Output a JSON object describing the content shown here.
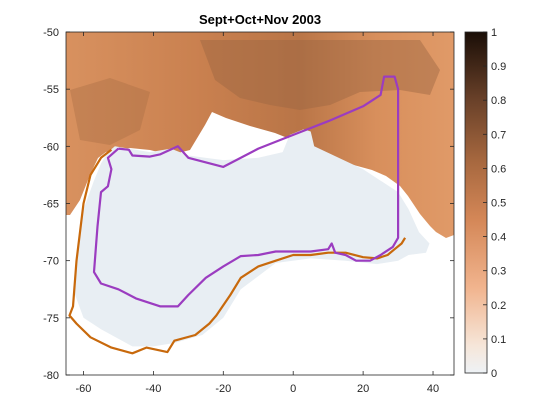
{
  "title": "Sept+Oct+Nov 2003",
  "map": {
    "lon_range": [
      -65,
      46
    ],
    "lat_range": [
      -80,
      -50
    ],
    "x_ticks": [
      "-60",
      "-40",
      "-20",
      "0",
      "20",
      "40"
    ],
    "x_tick_values": [
      -60,
      -40,
      -20,
      0,
      20,
      40
    ],
    "y_ticks": [
      "-50",
      "-55",
      "-60",
      "-65",
      "-70",
      "-75",
      "-80"
    ],
    "y_tick_values": [
      -50,
      -55,
      -60,
      -65,
      -70,
      -75,
      -80
    ],
    "colorbar_ticks": [
      "0",
      "0.1",
      "0.2",
      "0.3",
      "0.4",
      "0.5",
      "0.6",
      "0.7",
      "0.8",
      "0.9",
      "1"
    ],
    "colorbar_tick_values": [
      0,
      0.1,
      0.2,
      0.3,
      0.4,
      0.5,
      0.6,
      0.7,
      0.8,
      0.9,
      1
    ],
    "colorbar_range": [
      0,
      1
    ],
    "colors": {
      "ocean_field": "#d48757",
      "ocean_dark": "#8a5a3c",
      "sea_ice_low": "#e8eef3",
      "purple_boundary": "#9b3cc0",
      "orange_boundary": "#c8690c"
    },
    "purple_boundary_lonlat": [
      [
        -50,
        -60.2
      ],
      [
        -47,
        -60.3
      ],
      [
        -46,
        -60.8
      ],
      [
        -41,
        -60.9
      ],
      [
        -38,
        -60.7
      ],
      [
        -33,
        -60.0
      ],
      [
        -30,
        -61.0
      ],
      [
        -20,
        -61.8
      ],
      [
        -10,
        -60.2
      ],
      [
        0,
        -59.0
      ],
      [
        10,
        -57.8
      ],
      [
        20,
        -56.5
      ],
      [
        25,
        -55.5
      ],
      [
        26,
        -53.9
      ],
      [
        29,
        -53.9
      ],
      [
        30,
        -55.0
      ],
      [
        30,
        -68.0
      ],
      [
        28.5,
        -68.8
      ],
      [
        25,
        -69.5
      ],
      [
        22,
        -70.0
      ],
      [
        18,
        -70.0
      ],
      [
        15,
        -69.5
      ],
      [
        12,
        -69.3
      ],
      [
        11,
        -68.5
      ],
      [
        10,
        -69.0
      ],
      [
        5,
        -69.2
      ],
      [
        0,
        -69.2
      ],
      [
        -5,
        -69.2
      ],
      [
        -10,
        -69.5
      ],
      [
        -15,
        -69.6
      ],
      [
        -20,
        -70.5
      ],
      [
        -25,
        -71.5
      ],
      [
        -30,
        -73.0
      ],
      [
        -33,
        -74.0
      ],
      [
        -38,
        -74.0
      ],
      [
        -45,
        -73.3
      ],
      [
        -50,
        -72.5
      ],
      [
        -55,
        -72.0
      ],
      [
        -57,
        -71.0
      ],
      [
        -56,
        -67.0
      ],
      [
        -55,
        -64.0
      ],
      [
        -53,
        -63.5
      ],
      [
        -52,
        -62.0
      ],
      [
        -53,
        -61.0
      ],
      [
        -50,
        -60.2
      ]
    ],
    "orange_boundary_lonlat": [
      [
        -52,
        -60.3
      ],
      [
        -55,
        -61.0
      ],
      [
        -58,
        -62.5
      ],
      [
        -60,
        -65.0
      ],
      [
        -62,
        -70.0
      ],
      [
        -63,
        -74.0
      ],
      [
        -64,
        -74.8
      ],
      [
        -62,
        -75.5
      ],
      [
        -58,
        -76.7
      ],
      [
        -52,
        -77.6
      ],
      [
        -46,
        -78.1
      ],
      [
        -42,
        -77.6
      ],
      [
        -36,
        -78.0
      ],
      [
        -34,
        -77.0
      ],
      [
        -28,
        -76.5
      ],
      [
        -24,
        -75.5
      ],
      [
        -22,
        -74.8
      ],
      [
        -18,
        -73.0
      ],
      [
        -15,
        -71.5
      ],
      [
        -10,
        -70.5
      ],
      [
        -5,
        -70.0
      ],
      [
        0,
        -69.5
      ],
      [
        5,
        -69.5
      ],
      [
        10,
        -69.3
      ],
      [
        15,
        -69.3
      ],
      [
        20,
        -69.7
      ],
      [
        24,
        -69.8
      ],
      [
        27,
        -69.5
      ],
      [
        29,
        -69.0
      ],
      [
        31,
        -68.5
      ],
      [
        32,
        -68.0
      ]
    ],
    "ice_region_lonlat": [
      [
        -51,
        -60.0
      ],
      [
        -47,
        -60.2
      ],
      [
        -41,
        -60.5
      ],
      [
        -35,
        -60.2
      ],
      [
        -30,
        -60.8
      ],
      [
        -20,
        -61.2
      ],
      [
        -10,
        -61.0
      ],
      [
        -3,
        -60.5
      ],
      [
        -1,
        -59.0
      ],
      [
        3,
        -58.5
      ],
      [
        5,
        -58.7
      ],
      [
        6,
        -60.0
      ],
      [
        13,
        -61.0
      ],
      [
        20,
        -62.0
      ],
      [
        30,
        -64.0
      ],
      [
        33,
        -65.5
      ],
      [
        36,
        -67.5
      ],
      [
        39,
        -68.5
      ],
      [
        38,
        -69.3
      ],
      [
        33,
        -69.5
      ],
      [
        30,
        -70.0
      ],
      [
        24,
        -70.3
      ],
      [
        15,
        -70.0
      ],
      [
        5,
        -69.8
      ],
      [
        -5,
        -70.2
      ],
      [
        -15,
        -72.5
      ],
      [
        -20,
        -75.0
      ],
      [
        -26,
        -76.5
      ],
      [
        -34,
        -77.2
      ],
      [
        -40,
        -77.5
      ],
      [
        -46,
        -77.5
      ],
      [
        -55,
        -76.0
      ],
      [
        -60,
        -75.0
      ],
      [
        -63,
        -72.5
      ],
      [
        -60,
        -65.5
      ],
      [
        -57,
        -63.0
      ],
      [
        -55,
        -61.5
      ],
      [
        -53,
        -60.5
      ]
    ]
  }
}
